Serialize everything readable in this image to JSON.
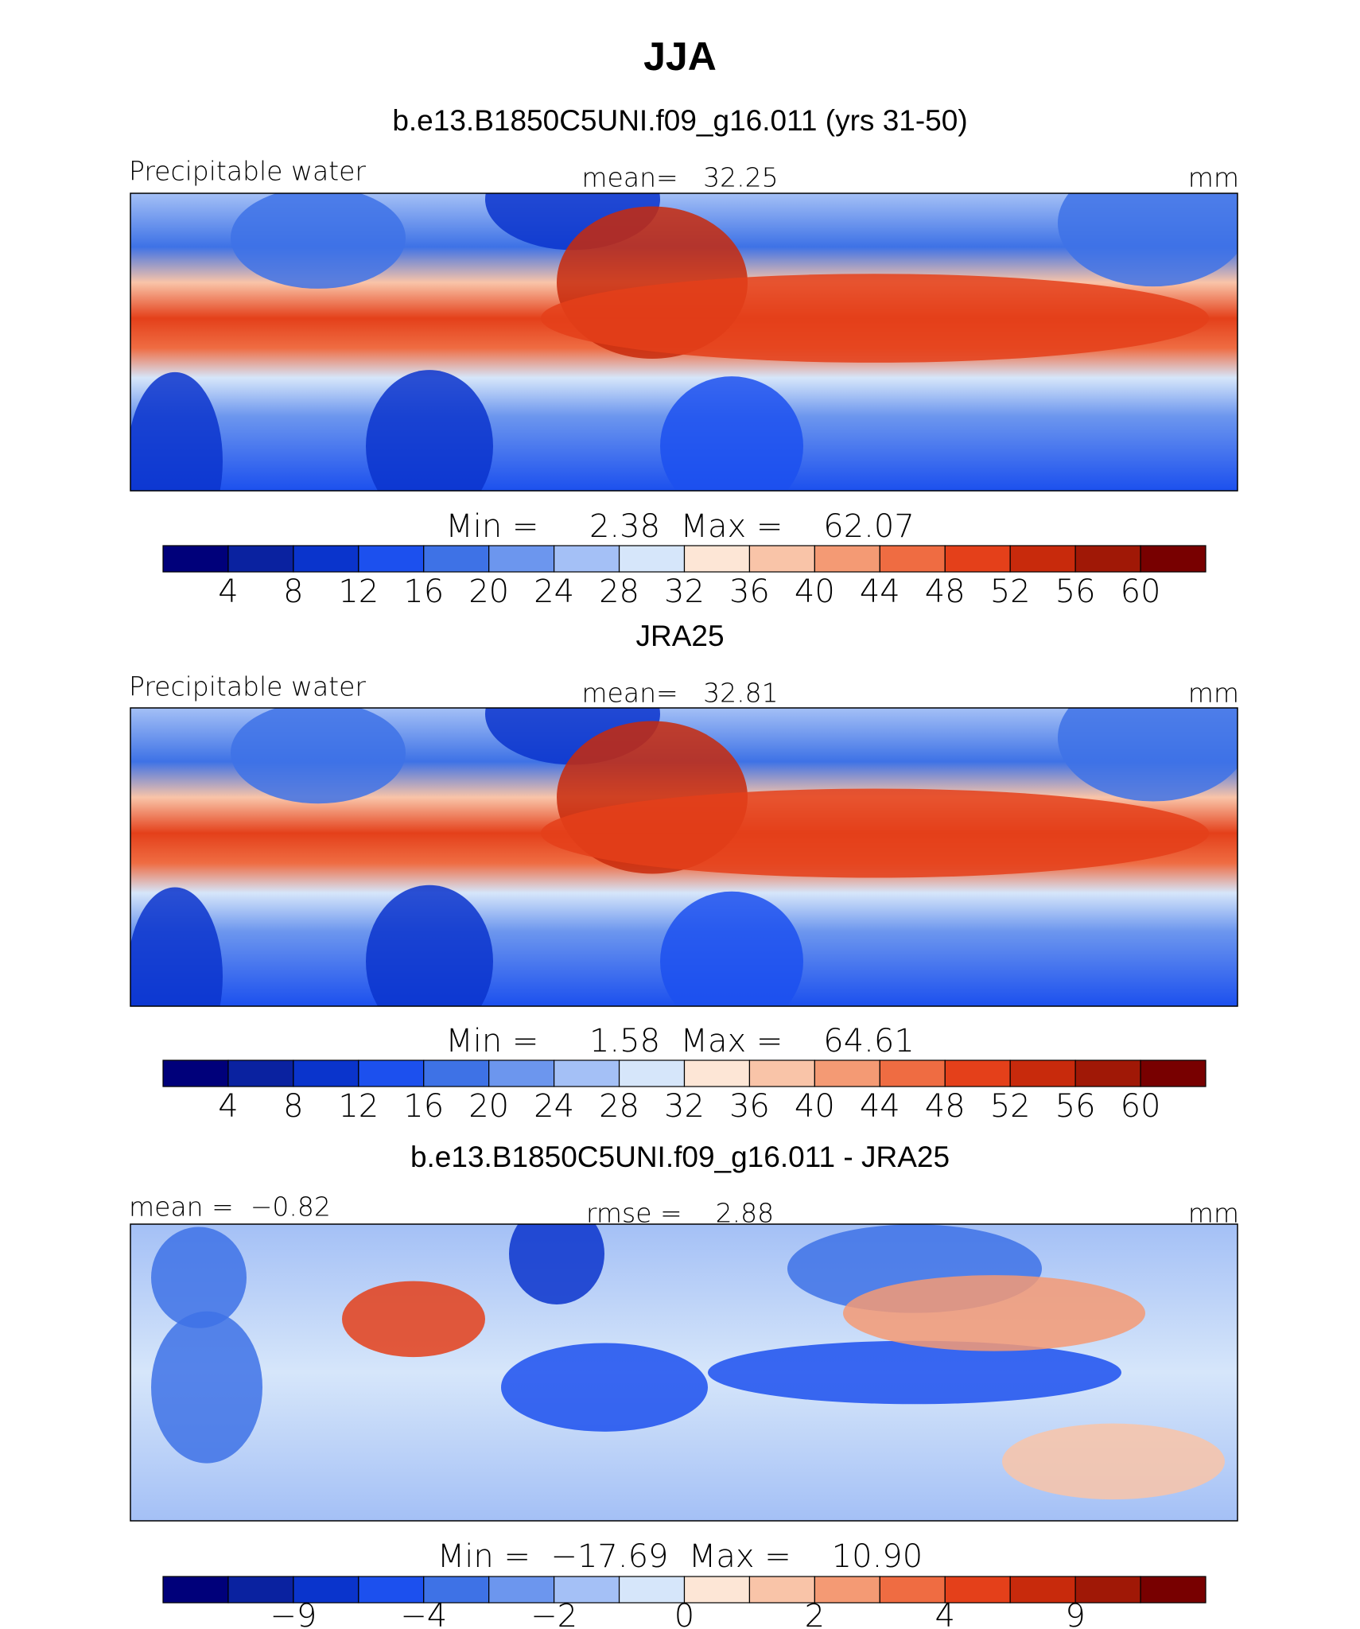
{
  "title": "JJA",
  "panels": [
    {
      "title": "b.e13.B1850C5UNI.f09_g16.011 (yrs 31-50)",
      "left_label": "Precipitable water",
      "center_label": "mean=   32.25",
      "right_label": "mm",
      "min_max": "Min =     2.38  Max =    62.07",
      "colorbar": {
        "colors": [
          "#00007a",
          "#0a22a0",
          "#0a34cc",
          "#1c50ee",
          "#3e72e6",
          "#6c96ee",
          "#a4c0f6",
          "#d6e6fa",
          "#fde6d6",
          "#f9c4a8",
          "#f49a74",
          "#ef6c42",
          "#e4401a",
          "#c82a0c",
          "#a01806",
          "#780000"
        ],
        "tick_labels": [
          "4",
          "8",
          "12",
          "16",
          "20",
          "24",
          "28",
          "32",
          "36",
          "40",
          "44",
          "48",
          "52",
          "56",
          "60"
        ]
      }
    },
    {
      "title": "JRA25",
      "left_label": "Precipitable water",
      "center_label": "mean=   32.81",
      "right_label": "mm",
      "min_max": "Min =     1.58  Max =    64.61",
      "colorbar": {
        "colors": [
          "#00007a",
          "#0a22a0",
          "#0a34cc",
          "#1c50ee",
          "#3e72e6",
          "#6c96ee",
          "#a4c0f6",
          "#d6e6fa",
          "#fde6d6",
          "#f9c4a8",
          "#f49a74",
          "#ef6c42",
          "#e4401a",
          "#c82a0c",
          "#a01806",
          "#780000"
        ],
        "tick_labels": [
          "4",
          "8",
          "12",
          "16",
          "20",
          "24",
          "28",
          "32",
          "36",
          "40",
          "44",
          "48",
          "52",
          "56",
          "60"
        ]
      }
    },
    {
      "title": "b.e13.B1850C5UNI.f09_g16.011 - JRA25",
      "left_label": "mean =  −0.82",
      "center_label": "rmse =    2.88",
      "right_label": "mm",
      "min_max": "Min =  −17.69  Max =    10.90",
      "colorbar": {
        "colors": [
          "#00007a",
          "#0a22a0",
          "#0a34cc",
          "#1c50ee",
          "#3e72e6",
          "#6c96ee",
          "#a4c0f6",
          "#d6e6fa",
          "#fde6d6",
          "#f9c4a8",
          "#f49a74",
          "#ef6c42",
          "#e4401a",
          "#c82a0c",
          "#a01806",
          "#780000"
        ],
        "tick_labels": [
          "−9",
          "−4",
          "−2",
          "0",
          "2",
          "4",
          "9"
        ]
      }
    }
  ]
}
